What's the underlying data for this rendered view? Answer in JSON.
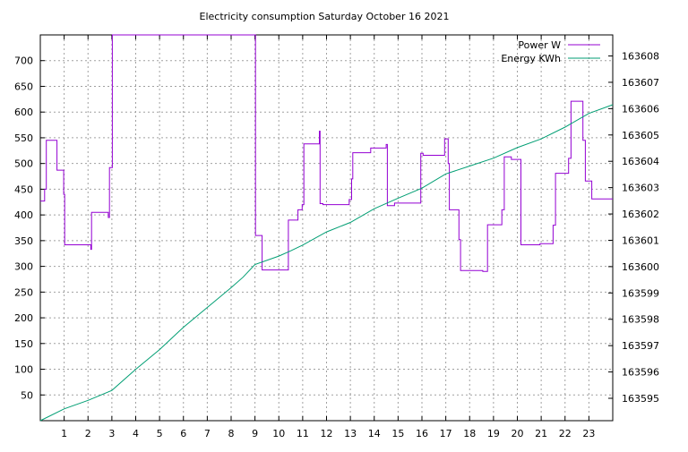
{
  "chart_data": {
    "type": "line",
    "title": "Electricity consumption Saturday October 16 2021",
    "xlabel": "",
    "ylabel": "",
    "y2label": "",
    "xlim": [
      0,
      24
    ],
    "ylim": [
      0,
      750
    ],
    "y2lim": [
      163594.15,
      163608.8
    ],
    "x_ticks": [
      "1",
      "2",
      "3",
      "4",
      "5",
      "6",
      "7",
      "8",
      "9",
      "10",
      "11",
      "12",
      "13",
      "14",
      "15",
      "16",
      "17",
      "18",
      "19",
      "20",
      "21",
      "22",
      "23"
    ],
    "y_ticks": [
      "50",
      "100",
      "150",
      "200",
      "250",
      "300",
      "350",
      "400",
      "450",
      "500",
      "550",
      "600",
      "650",
      "700"
    ],
    "y2_ticks": [
      "163595",
      "163596",
      "163597",
      "163598",
      "163599",
      "163600",
      "163601",
      "163602",
      "163603",
      "163604",
      "163605",
      "163606",
      "163607",
      "163608"
    ],
    "grid": true,
    "legend_position": "top-right",
    "series": [
      {
        "name": "Power W",
        "color": "#9400d3",
        "axis": "left",
        "points": [
          [
            0,
            427
          ],
          [
            0.18,
            427
          ],
          [
            0.18,
            450
          ],
          [
            0.25,
            450
          ],
          [
            0.25,
            545
          ],
          [
            0.7,
            545
          ],
          [
            0.7,
            487
          ],
          [
            0.98,
            487
          ],
          [
            0.98,
            440
          ],
          [
            1.02,
            440
          ],
          [
            1.02,
            342
          ],
          [
            2.12,
            342
          ],
          [
            2.12,
            333
          ],
          [
            2.15,
            333
          ],
          [
            2.15,
            405
          ],
          [
            2.85,
            405
          ],
          [
            2.85,
            395
          ],
          [
            2.9,
            395
          ],
          [
            2.9,
            492
          ],
          [
            3.02,
            492
          ],
          [
            3.02,
            750
          ],
          [
            3.05,
            750
          ],
          [
            3.05,
            750
          ],
          [
            8.98,
            750
          ],
          [
            9.02,
            750
          ],
          [
            9.02,
            360
          ],
          [
            9.3,
            360
          ],
          [
            9.3,
            293
          ],
          [
            10.4,
            293
          ],
          [
            10.4,
            390
          ],
          [
            10.8,
            390
          ],
          [
            10.8,
            410
          ],
          [
            10.98,
            410
          ],
          [
            10.98,
            420
          ],
          [
            11.05,
            420
          ],
          [
            11.05,
            538
          ],
          [
            11.7,
            538
          ],
          [
            11.7,
            563
          ],
          [
            11.73,
            563
          ],
          [
            11.73,
            422
          ],
          [
            11.85,
            422
          ],
          [
            11.85,
            420
          ],
          [
            12.95,
            420
          ],
          [
            12.95,
            430
          ],
          [
            13.05,
            430
          ],
          [
            13.05,
            470
          ],
          [
            13.1,
            470
          ],
          [
            13.1,
            521
          ],
          [
            13.85,
            521
          ],
          [
            13.85,
            530
          ],
          [
            14.5,
            530
          ],
          [
            14.5,
            537
          ],
          [
            14.55,
            537
          ],
          [
            14.55,
            418
          ],
          [
            14.85,
            418
          ],
          [
            14.85,
            423
          ],
          [
            15.95,
            423
          ],
          [
            15.95,
            520
          ],
          [
            16.05,
            520
          ],
          [
            16.05,
            516
          ],
          [
            16.95,
            516
          ],
          [
            16.95,
            548
          ],
          [
            17.1,
            548
          ],
          [
            17.1,
            500
          ],
          [
            17.15,
            500
          ],
          [
            17.15,
            410
          ],
          [
            17.55,
            410
          ],
          [
            17.55,
            352
          ],
          [
            17.62,
            352
          ],
          [
            17.62,
            292
          ],
          [
            18.55,
            292
          ],
          [
            18.55,
            290
          ],
          [
            18.75,
            290
          ],
          [
            18.75,
            381
          ],
          [
            19.35,
            381
          ],
          [
            19.35,
            410
          ],
          [
            19.45,
            410
          ],
          [
            19.45,
            513
          ],
          [
            19.75,
            513
          ],
          [
            19.75,
            508
          ],
          [
            20.15,
            508
          ],
          [
            20.15,
            342
          ],
          [
            20.95,
            342
          ],
          [
            20.95,
            344
          ],
          [
            21.5,
            344
          ],
          [
            21.5,
            380
          ],
          [
            21.6,
            380
          ],
          [
            21.6,
            481
          ],
          [
            22.15,
            481
          ],
          [
            22.15,
            510
          ],
          [
            22.25,
            510
          ],
          [
            22.25,
            621
          ],
          [
            22.75,
            621
          ],
          [
            22.75,
            545
          ],
          [
            22.85,
            545
          ],
          [
            22.85,
            466
          ],
          [
            23.12,
            466
          ],
          [
            23.12,
            431
          ],
          [
            24,
            431
          ]
        ]
      },
      {
        "name": "Energy KWh",
        "color": "#009e73",
        "axis": "right",
        "points": [
          [
            0,
            163594.15
          ],
          [
            1,
            163594.6
          ],
          [
            2,
            163594.92
          ],
          [
            3,
            163595.3
          ],
          [
            4,
            163596.1
          ],
          [
            5,
            163596.85
          ],
          [
            6,
            163597.7
          ],
          [
            7,
            163598.45
          ],
          [
            8,
            163599.2
          ],
          [
            8.5,
            163599.6
          ],
          [
            9,
            163600.08
          ],
          [
            10,
            163600.4
          ],
          [
            10.5,
            163600.6
          ],
          [
            11,
            163600.82
          ],
          [
            12,
            163601.32
          ],
          [
            13,
            163601.68
          ],
          [
            14,
            163602.2
          ],
          [
            15,
            163602.6
          ],
          [
            16,
            163602.98
          ],
          [
            17,
            163603.52
          ],
          [
            18,
            163603.82
          ],
          [
            19,
            163604.12
          ],
          [
            20,
            163604.52
          ],
          [
            21,
            163604.85
          ],
          [
            22,
            163605.3
          ],
          [
            23,
            163605.82
          ],
          [
            24,
            163606.15
          ]
        ]
      }
    ]
  }
}
